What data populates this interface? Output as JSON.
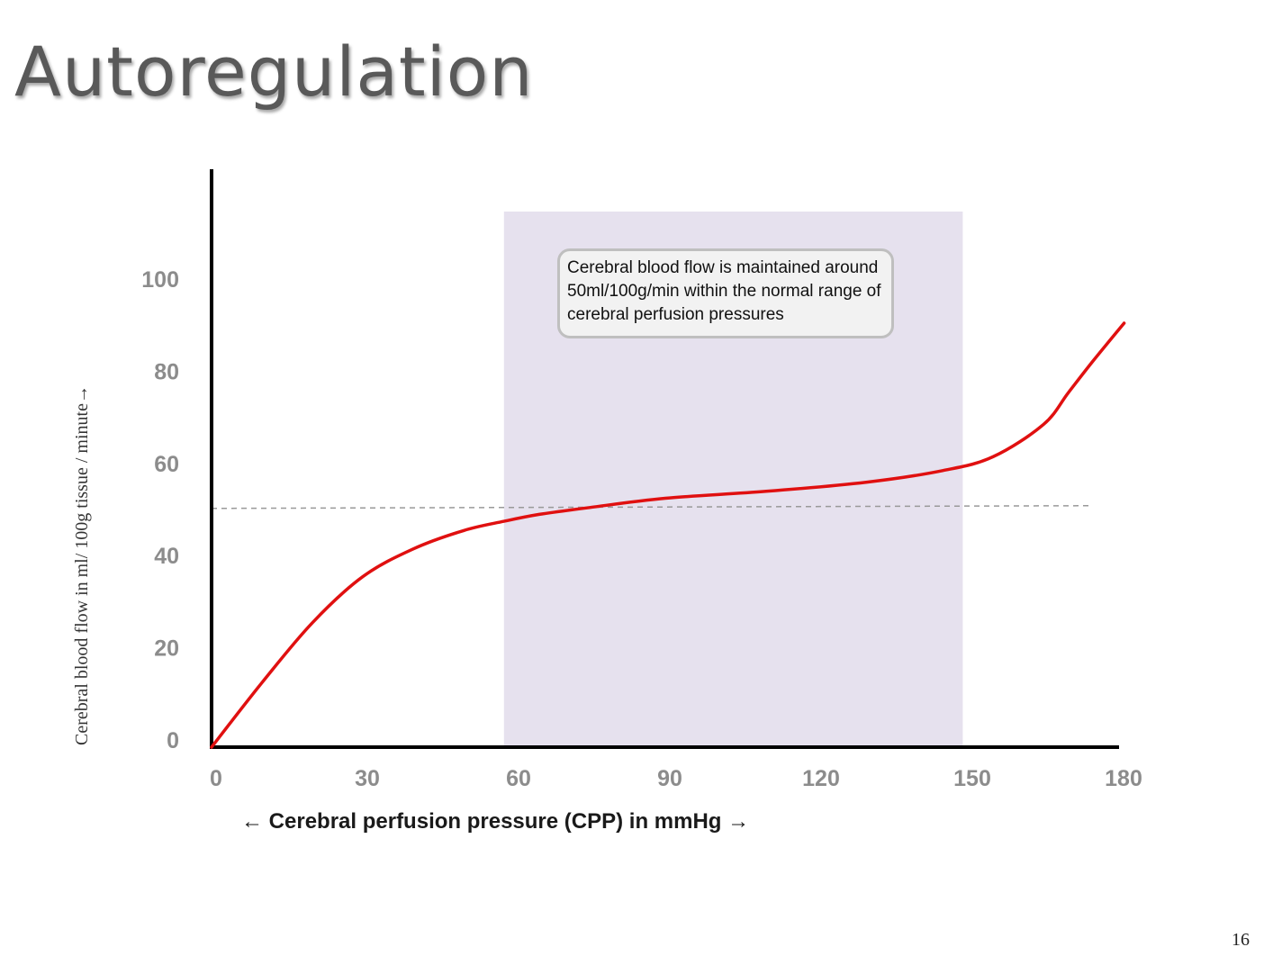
{
  "slide": {
    "title": "Autoregulation",
    "page_number": "16"
  },
  "annotation": {
    "text": "Cerebral blood flow is maintained around\n50ml/100g/min within the normal range of\ncerebral perfusion pressures"
  },
  "colors": {
    "curve": "#e01010",
    "shaded_region": "#e6e1ee",
    "axis": "#000000",
    "reference_line": "#999999",
    "tick_labels": "#8c8c8c"
  },
  "chart_data": {
    "type": "line",
    "title": "",
    "xlabel": "← Cerebral perfusion pressure (CPP) in mmHg →",
    "ylabel": "Cerebral blood flow in  ml/ 100g  tissue / minute→",
    "xlim": [
      0,
      180
    ],
    "ylim": [
      0,
      125
    ],
    "x_ticks": [
      "0",
      "30",
      "60",
      "90",
      "120",
      "150",
      "180"
    ],
    "y_ticks": [
      "0",
      "20",
      "40",
      "60",
      "80",
      "100"
    ],
    "grid": false,
    "shaded_range": {
      "x_start": 58,
      "x_end": 149
    },
    "reference_line": {
      "y": 52,
      "x_end": 174,
      "style": "dashed"
    },
    "series": [
      {
        "x": [
          0,
          10,
          20,
          30,
          40,
          50,
          58,
          65,
          75,
          90,
          110,
          130,
          145,
          155,
          165,
          170,
          175,
          181
        ],
        "y": [
          0,
          14,
          27,
          37,
          43,
          47,
          49,
          50.5,
          52,
          54,
          55.5,
          57.5,
          60,
          63,
          70,
          77,
          84,
          92
        ]
      }
    ]
  }
}
